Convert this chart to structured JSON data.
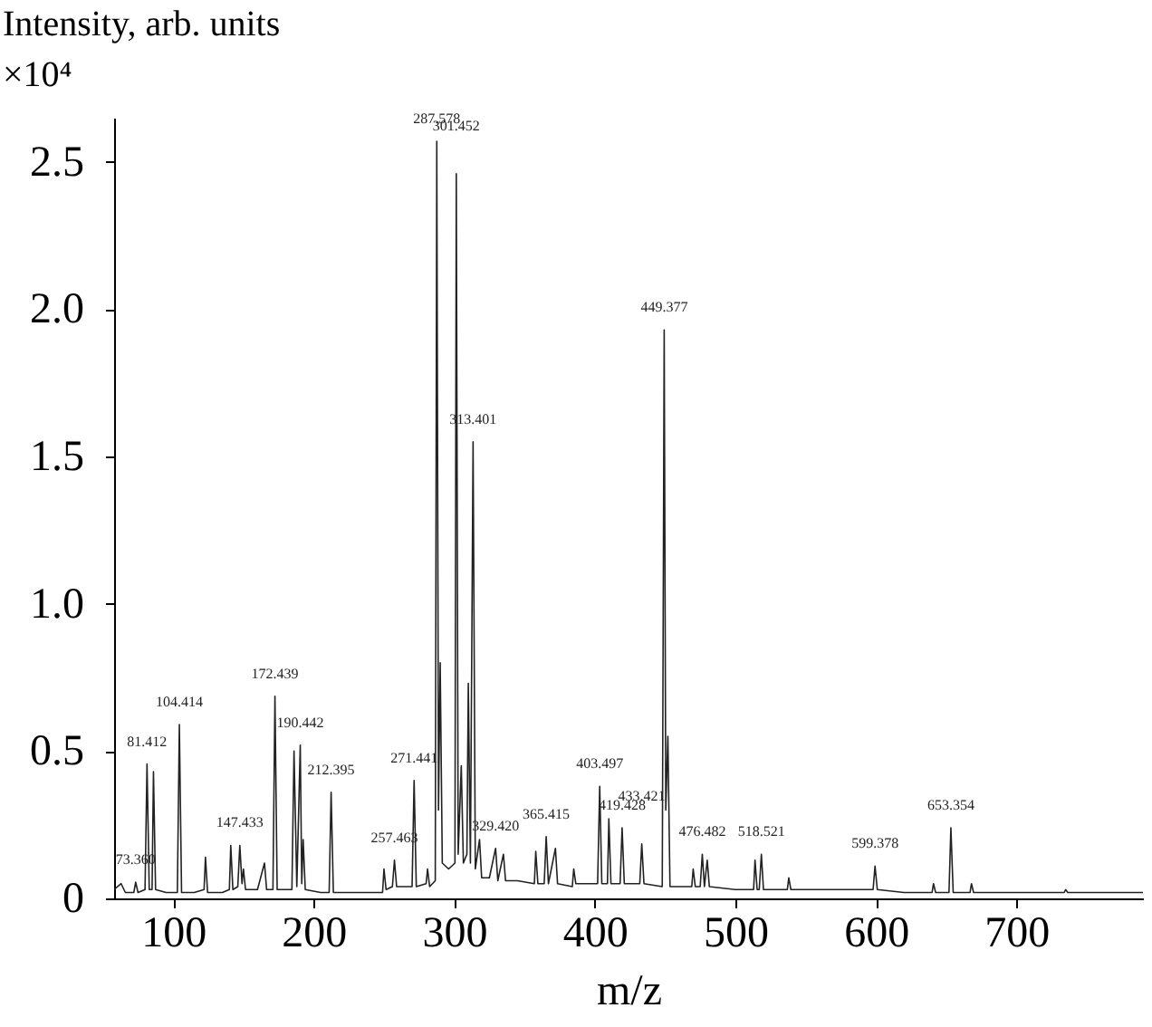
{
  "chart_data": {
    "type": "line",
    "xlabel": "m/z",
    "ylabel": "Intensity, arb. units\n×10⁴",
    "annotations": [
      {
        "text": "73.360",
        "x": 73.36,
        "y": 0.055
      },
      {
        "text": "81.412",
        "x": 81.412,
        "y": 0.456
      },
      {
        "text": "104.414",
        "x": 104.414,
        "y": 0.59
      },
      {
        "text": "147.433",
        "x": 147.433,
        "y": 0.18
      },
      {
        "text": "172.439",
        "x": 172.439,
        "y": 0.686
      },
      {
        "text": "190.442",
        "x": 190.442,
        "y": 0.52
      },
      {
        "text": "212.395",
        "x": 212.395,
        "y": 0.36
      },
      {
        "text": "257.463",
        "x": 257.463,
        "y": 0.13
      },
      {
        "text": "271.441",
        "x": 271.441,
        "y": 0.4
      },
      {
        "text": "287.578",
        "x": 287.578,
        "y": 2.57
      },
      {
        "text": "301.452",
        "x": 301.452,
        "y": 2.46
      },
      {
        "text": "313.401",
        "x": 313.401,
        "y": 1.55
      },
      {
        "text": "329.420",
        "x": 329.42,
        "y": 0.17
      },
      {
        "text": "365.415",
        "x": 365.415,
        "y": 0.21
      },
      {
        "text": "403.497",
        "x": 403.497,
        "y": 0.38
      },
      {
        "text": "419.428",
        "x": 419.428,
        "y": 0.24
      },
      {
        "text": "433.421",
        "x": 433.421,
        "y": 0.185
      },
      {
        "text": "449.377",
        "x": 449.377,
        "y": 1.93
      },
      {
        "text": "476.482",
        "x": 476.482,
        "y": 0.15
      },
      {
        "text": "518.521",
        "x": 518.521,
        "y": 0.15
      },
      {
        "text": "599.378",
        "x": 599.378,
        "y": 0.11
      },
      {
        "text": "653.354",
        "x": 653.354,
        "y": 0.24
      }
    ],
    "x": [
      58,
      63,
      66,
      72,
      73.36,
      75,
      80,
      81.412,
      83,
      85,
      86,
      87.5,
      95,
      103,
      104.414,
      106,
      115,
      122,
      123,
      124.5,
      135,
      140,
      141,
      142.5,
      146,
      147.433,
      149,
      150,
      151.5,
      160,
      165,
      166.5,
      171,
      172.439,
      174,
      184.5,
      186,
      188,
      190.442,
      191.5,
      192.5,
      194,
      205,
      211,
      212.395,
      214,
      230,
      249,
      250,
      251.5,
      256,
      257.463,
      259,
      270,
      271.441,
      273,
      280,
      281,
      282.5,
      286.5,
      287.578,
      288.8,
      290,
      291.5,
      296,
      300.5,
      301.452,
      302.8,
      305,
      306.5,
      309,
      310,
      311.5,
      313.401,
      315,
      318,
      319.5,
      325,
      329.42,
      331,
      335,
      336.5,
      345,
      357,
      358,
      359.5,
      364,
      365.415,
      367,
      372,
      373.5,
      384,
      385,
      386.5,
      402,
      403.497,
      405,
      409,
      410,
      411.5,
      418,
      419.428,
      421,
      432,
      433.421,
      435,
      448,
      449.377,
      450.5,
      452,
      453.5,
      469,
      470,
      471.5,
      475,
      476.482,
      478,
      480,
      481.5,
      500,
      513,
      514,
      515.5,
      517,
      518.521,
      520,
      537,
      538,
      539.5,
      570,
      598,
      599.378,
      601,
      620,
      640,
      641,
      642.5,
      652,
      653.354,
      655,
      667,
      668,
      669.5,
      700,
      734,
      735,
      736.5,
      760,
      790
    ],
    "series": [
      {
        "color": "#222222",
        "values": [
          0.03,
          0.05,
          0.02,
          0.02,
          0.055,
          0.02,
          0.03,
          0.456,
          0.03,
          0.03,
          0.43,
          0.03,
          0.02,
          0.02,
          0.59,
          0.02,
          0.02,
          0.03,
          0.14,
          0.02,
          0.02,
          0.03,
          0.18,
          0.03,
          0.04,
          0.18,
          0.05,
          0.1,
          0.03,
          0.03,
          0.12,
          0.03,
          0.03,
          0.686,
          0.03,
          0.03,
          0.5,
          0.04,
          0.52,
          0.05,
          0.2,
          0.03,
          0.02,
          0.02,
          0.36,
          0.02,
          0.02,
          0.02,
          0.1,
          0.03,
          0.04,
          0.13,
          0.04,
          0.04,
          0.4,
          0.04,
          0.05,
          0.1,
          0.04,
          0.06,
          2.57,
          0.3,
          0.8,
          0.12,
          0.1,
          0.12,
          2.46,
          0.15,
          0.45,
          0.12,
          0.15,
          0.73,
          0.12,
          1.55,
          0.1,
          0.2,
          0.07,
          0.07,
          0.17,
          0.06,
          0.15,
          0.06,
          0.06,
          0.05,
          0.16,
          0.05,
          0.05,
          0.21,
          0.05,
          0.17,
          0.05,
          0.04,
          0.1,
          0.05,
          0.05,
          0.38,
          0.05,
          0.05,
          0.27,
          0.05,
          0.05,
          0.24,
          0.05,
          0.05,
          0.185,
          0.05,
          0.04,
          1.93,
          0.3,
          0.55,
          0.04,
          0.04,
          0.1,
          0.04,
          0.04,
          0.15,
          0.04,
          0.13,
          0.04,
          0.03,
          0.03,
          0.13,
          0.03,
          0.03,
          0.15,
          0.03,
          0.03,
          0.07,
          0.03,
          0.03,
          0.03,
          0.11,
          0.03,
          0.02,
          0.02,
          0.05,
          0.02,
          0.02,
          0.24,
          0.02,
          0.02,
          0.05,
          0.02,
          0.02,
          0.02,
          0.03,
          0.02,
          0.02,
          0.02
        ]
      }
    ],
    "xlim": [
      58,
      790
    ],
    "xticks": [
      100,
      200,
      300,
      400,
      500,
      600,
      700
    ],
    "ylim": [
      0,
      2.65
    ],
    "yticks": [
      0,
      0.5,
      {
        "value": 1,
        "label": "1.0"
      },
      1.5,
      {
        "value": 2,
        "label": "2.0"
      },
      2.5
    ],
    "grid": false
  }
}
